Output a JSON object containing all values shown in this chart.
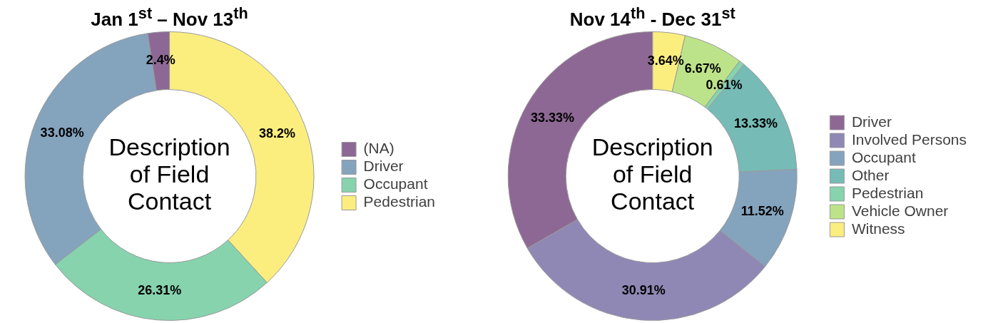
{
  "chart_data": [
    {
      "type": "donut",
      "title": "Jan 1$^{st}$ – Nov 13$^{th}$",
      "annotations": [
        "Description of Field Contact"
      ],
      "categories": [
        "(NA)",
        "Driver",
        "Occupant",
        "Pedestrian"
      ],
      "values": [
        2.4,
        33.08,
        26.31,
        38.2
      ],
      "value_labels": [
        "2.4%",
        "33.08%",
        "26.31%",
        "38.2%"
      ],
      "colors": [
        "#8e6894",
        "#84a3bd",
        "#86d3ae",
        "#fbee7f"
      ],
      "legend": "right"
    },
    {
      "type": "donut",
      "title": "Nov 14$^{th}$  - Dec 31$^{st}$",
      "annotations": [
        "Description of Field Contact"
      ],
      "categories": [
        "Driver",
        "Involved Persons",
        "Occupant",
        "Other",
        "Pedestrian",
        "Vehicle Owner",
        "Witness"
      ],
      "values": [
        33.33,
        30.91,
        11.52,
        13.33,
        0.61,
        6.67,
        3.64
      ],
      "value_labels": [
        "33.33%",
        "30.91%",
        "11.52%",
        "13.33%",
        "0.61%",
        "6.67%",
        "3.64%"
      ],
      "colors": [
        "#8e6894",
        "#8f88b5",
        "#84a3bd",
        "#76bbb6",
        "#86d3ae",
        "#bde38a",
        "#fbee7f"
      ],
      "legend": "right"
    }
  ]
}
